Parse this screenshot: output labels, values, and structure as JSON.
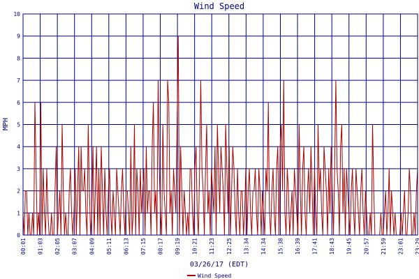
{
  "chart_data": {
    "type": "line",
    "title": "Wind Speed",
    "xlabel": "03/26/17 (EDT)",
    "ylabel": "MPH",
    "ylim": [
      0,
      10
    ],
    "y_ticks": [
      "0",
      "1",
      "2",
      "3",
      "4",
      "5",
      "6",
      "7",
      "8",
      "9",
      "10"
    ],
    "x_ticks": [
      "00:01",
      "01:03",
      "02:05",
      "03:07",
      "04:09",
      "05:11",
      "06:13",
      "07:15",
      "08:17",
      "09:19",
      "10:21",
      "11:23",
      "12:25",
      "13:34",
      "14:34",
      "15:38",
      "16:39",
      "17:41",
      "18:43",
      "19:45",
      "20:57",
      "21:59",
      "23:01",
      "23:29"
    ],
    "grid": true,
    "legend_position": "bottom-left",
    "colors": {
      "series": "#aa0000",
      "grid": "#000080",
      "text": "#000080"
    },
    "series": [
      {
        "name": "Wind Speed",
        "values": [
          1,
          0,
          2,
          2,
          0,
          1,
          0,
          0,
          1,
          0,
          6,
          3,
          0,
          1,
          0,
          6,
          0,
          3,
          1,
          0,
          3,
          1,
          0,
          0,
          1,
          0,
          0,
          2,
          4,
          0,
          1,
          2,
          0,
          5,
          2,
          0,
          1,
          0,
          0,
          2,
          3,
          1,
          0,
          1,
          3,
          0,
          2,
          4,
          0,
          4,
          2,
          2,
          3,
          1,
          0,
          5,
          2,
          0,
          1,
          4,
          0,
          2,
          4,
          0,
          3,
          0,
          4,
          2,
          0,
          3,
          1,
          0,
          2,
          3,
          1,
          0,
          2,
          1,
          0,
          3,
          2,
          1,
          0,
          2,
          3,
          1,
          0,
          2,
          2,
          1,
          0,
          4,
          0,
          1,
          5,
          0,
          3,
          2,
          0,
          3,
          1,
          2,
          3,
          0,
          4,
          1,
          2,
          2,
          0,
          4,
          6,
          1,
          2,
          0,
          7,
          3,
          1,
          0,
          5,
          2,
          1,
          0,
          7,
          6,
          1,
          2,
          0,
          3,
          2,
          1,
          5,
          9,
          0,
          4,
          2,
          0,
          2,
          1,
          0,
          1,
          0,
          3,
          3,
          1,
          0,
          3,
          4,
          1,
          0,
          3,
          7,
          3,
          2,
          0,
          3,
          5,
          1,
          2,
          0,
          3,
          2,
          1,
          4,
          0,
          5,
          3,
          1,
          4,
          3,
          2,
          0,
          5,
          3,
          1,
          4,
          0,
          2,
          4,
          3,
          1,
          0,
          3,
          1,
          0,
          2,
          2,
          0,
          1,
          3,
          0,
          2,
          3,
          1,
          0,
          2,
          2,
          3,
          1,
          0,
          3,
          2,
          0,
          2,
          1,
          0,
          3,
          2,
          6,
          1,
          0,
          2,
          3,
          1,
          0,
          3,
          4,
          0,
          4,
          5,
          2,
          7,
          1,
          0,
          3,
          2,
          0,
          1,
          2,
          0,
          3,
          2,
          1,
          0,
          5,
          2,
          0,
          3,
          4,
          1,
          0,
          2,
          3,
          1,
          4,
          2,
          0,
          3,
          1,
          0,
          5,
          2,
          3,
          1,
          0,
          4,
          3,
          2,
          0,
          3,
          1,
          4,
          2,
          0,
          3,
          7,
          3,
          2,
          0,
          4,
          5,
          1,
          3,
          0,
          3,
          2,
          1,
          0,
          2,
          3,
          1,
          0,
          3,
          2,
          1,
          0,
          2,
          3,
          1,
          0,
          2,
          1,
          0,
          0,
          1,
          0,
          5,
          2,
          0,
          0,
          0,
          0,
          0,
          1,
          0,
          0,
          1,
          2,
          0,
          1,
          3,
          0,
          2,
          1,
          0,
          1,
          0,
          0,
          0,
          0,
          1,
          0,
          1,
          2,
          0,
          0,
          1,
          3,
          2,
          0,
          0,
          1,
          0,
          2,
          3
        ]
      }
    ]
  },
  "legend": {
    "label": "Wind Speed"
  }
}
